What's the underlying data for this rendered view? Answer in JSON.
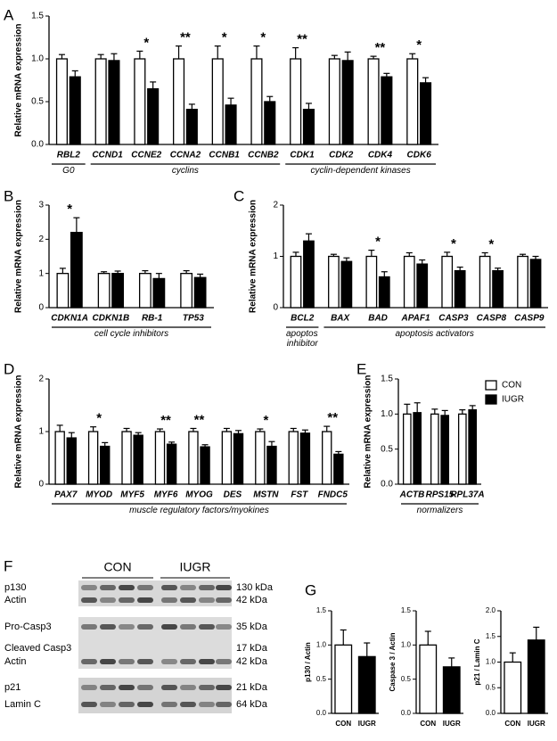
{
  "chart_data": [
    {
      "type": "bar",
      "panel": "A",
      "ylabel": "Relative mRNA expression",
      "categories": [
        "RBL2",
        "CCND1",
        "CCNE2",
        "CCNA2",
        "CCNB1",
        "CCNB2",
        "CDK1",
        "CDK2",
        "CDK4",
        "CDK6"
      ],
      "series": [
        {
          "color": "#ffffff",
          "values": [
            1,
            1,
            1,
            1,
            1,
            1,
            1,
            1,
            1,
            1
          ],
          "errors": [
            0.05,
            0.05,
            0.09,
            0.15,
            0.15,
            0.15,
            0.13,
            0.04,
            0.03,
            0.06
          ]
        },
        {
          "color": "#000000",
          "values": [
            0.79,
            0.98,
            0.65,
            0.41,
            0.46,
            0.5,
            0.41,
            0.98,
            0.79,
            0.72
          ],
          "errors": [
            0.07,
            0.08,
            0.08,
            0.06,
            0.08,
            0.06,
            0.07,
            0.1,
            0.04,
            0.06
          ]
        }
      ],
      "significance": [
        null,
        null,
        "*",
        "**",
        "*",
        "*",
        "**",
        null,
        "**",
        "*"
      ],
      "groups": [
        "G0",
        "cyclins",
        "cyclin-dependent kinases"
      ],
      "ylim": [
        0,
        1.5
      ],
      "yticks": [
        {
          "value": 0,
          "label": "0.0"
        },
        0.5,
        {
          "value": 1,
          "label": "1.0"
        },
        1.5
      ]
    },
    {
      "type": "bar",
      "panel": "B",
      "ylabel": "Relative mRNA expression",
      "categories": [
        "CDKN1A",
        "CDKN1B",
        "RB-1",
        "TP53"
      ],
      "series": [
        {
          "color": "#ffffff",
          "values": [
            1,
            1,
            1,
            1
          ],
          "errors": [
            0.15,
            0.05,
            0.08,
            0.08
          ]
        },
        {
          "color": "#000000",
          "values": [
            2.2,
            1,
            0.85,
            0.88
          ],
          "errors": [
            0.43,
            0.07,
            0.15,
            0.1
          ]
        }
      ],
      "significance": [
        "*",
        null,
        null,
        null
      ],
      "groups": [
        "cell cycle inhibitors"
      ],
      "ylim": [
        0,
        3
      ],
      "yticks": [
        0,
        1,
        2,
        3
      ]
    },
    {
      "type": "bar",
      "panel": "C",
      "ylabel": "Relative mRNA expression",
      "categories": [
        "BCL2",
        "BAX",
        "BAD",
        "APAF1",
        "CASP3",
        "CASP8",
        "CASP9"
      ],
      "series": [
        {
          "color": "#ffffff",
          "values": [
            1,
            1,
            1,
            1,
            1,
            1,
            1
          ],
          "errors": [
            0.08,
            0.04,
            0.12,
            0.07,
            0.08,
            0.07,
            0.04
          ]
        },
        {
          "color": "#000000",
          "values": [
            1.3,
            0.9,
            0.6,
            0.85,
            0.72,
            0.72,
            0.94
          ],
          "errors": [
            0.14,
            0.07,
            0.1,
            0.08,
            0.07,
            0.05,
            0.06
          ]
        }
      ],
      "significance": [
        null,
        null,
        "*",
        null,
        "*",
        "*",
        null
      ],
      "groups": [
        "apoptosis inhibitor",
        "apoptosis activators"
      ],
      "ylim": [
        0,
        2
      ],
      "yticks": [
        0,
        1,
        2
      ]
    },
    {
      "type": "bar",
      "panel": "D",
      "ylabel": "Relative mRNA expression",
      "categories": [
        "PAX7",
        "MYOD",
        "MYF5",
        "MYF6",
        "MYOG",
        "DES",
        "MSTN",
        "FST",
        "FNDC5"
      ],
      "series": [
        {
          "color": "#ffffff",
          "values": [
            1,
            1,
            1,
            1,
            1,
            1,
            1,
            1,
            1
          ],
          "errors": [
            0.12,
            0.09,
            0.06,
            0.05,
            0.06,
            0.06,
            0.05,
            0.06,
            0.1
          ]
        },
        {
          "color": "#000000",
          "values": [
            0.88,
            0.72,
            0.93,
            0.76,
            0.71,
            0.96,
            0.72,
            0.97,
            0.57
          ],
          "errors": [
            0.1,
            0.07,
            0.05,
            0.04,
            0.04,
            0.06,
            0.09,
            0.06,
            0.05
          ]
        }
      ],
      "significance": [
        null,
        "*",
        null,
        "**",
        "**",
        null,
        "*",
        null,
        "**"
      ],
      "groups": [
        "muscle regulatory factors/myokines"
      ],
      "ylim": [
        0,
        2
      ],
      "yticks": [
        0,
        1,
        2
      ]
    },
    {
      "type": "bar",
      "panel": "E",
      "ylabel": "Relative mRNA expression",
      "categories": [
        "ACTB",
        "RPS15",
        "RPL37A"
      ],
      "series": [
        {
          "name": "CON",
          "color": "#ffffff",
          "values": [
            1,
            1,
            1
          ],
          "errors": [
            0.14,
            0.07,
            0.06
          ]
        },
        {
          "name": "IUGR",
          "color": "#000000",
          "values": [
            1.02,
            0.98,
            1.06
          ],
          "errors": [
            0.14,
            0.07,
            0.06
          ]
        }
      ],
      "groups": [
        "normalizers"
      ],
      "ylim": [
        0,
        1.5
      ],
      "yticks": [
        {
          "value": 0,
          "label": "0.0"
        },
        0.5,
        {
          "value": 1,
          "label": "1.0"
        },
        1.5
      ]
    },
    {
      "type": "bar",
      "panel": "G",
      "ylabel": "p130 / Actin",
      "categories": [
        "CON",
        "IUGR"
      ],
      "colors": [
        "#ffffff",
        "#000000"
      ],
      "values": [
        1,
        0.83
      ],
      "errors": [
        0.22,
        0.2
      ],
      "ylim": [
        0,
        1.5
      ],
      "yticks": [
        {
          "value": 0,
          "label": "0.0"
        },
        0.5,
        {
          "value": 1,
          "label": "1.0"
        },
        1.5
      ]
    },
    {
      "type": "bar",
      "ylabel": "Caspase 3 / Actin",
      "categories": [
        "CON",
        "IUGR"
      ],
      "colors": [
        "#ffffff",
        "#000000"
      ],
      "values": [
        1,
        0.68
      ],
      "errors": [
        0.2,
        0.13
      ],
      "ylim": [
        0,
        1.5
      ],
      "yticks": [
        {
          "value": 0,
          "label": "0.0"
        },
        0.5,
        {
          "value": 1,
          "label": "1.0"
        },
        1.5
      ]
    },
    {
      "type": "bar",
      "ylabel": "p21 / Lamin C",
      "categories": [
        "CON",
        "IUGR"
      ],
      "colors": [
        "#ffffff",
        "#000000"
      ],
      "values": [
        1,
        1.43
      ],
      "errors": [
        0.18,
        0.25
      ],
      "ylim": [
        0,
        2
      ],
      "yticks": [
        {
          "value": 0,
          "label": "0.0"
        },
        0.5,
        {
          "value": 1,
          "label": "1.0"
        },
        1.5,
        {
          "value": 2,
          "label": "2.0"
        }
      ]
    }
  ],
  "blot": {
    "panel": "F",
    "groups": [
      "CON",
      "IUGR"
    ],
    "rows": [
      {
        "label": "p130",
        "size": "130 kDa"
      },
      {
        "label": "Actin",
        "size": "42 kDa"
      },
      {
        "label": "Pro-Casp3",
        "size": "35 kDa"
      },
      {
        "label": "Cleaved Casp3",
        "size": "17 kDa"
      },
      {
        "label": "Actin",
        "size": "42 kDa"
      },
      {
        "label": "p21",
        "size": "21 kDa"
      },
      {
        "label": "Lamin C",
        "size": "64 kDa"
      }
    ]
  }
}
